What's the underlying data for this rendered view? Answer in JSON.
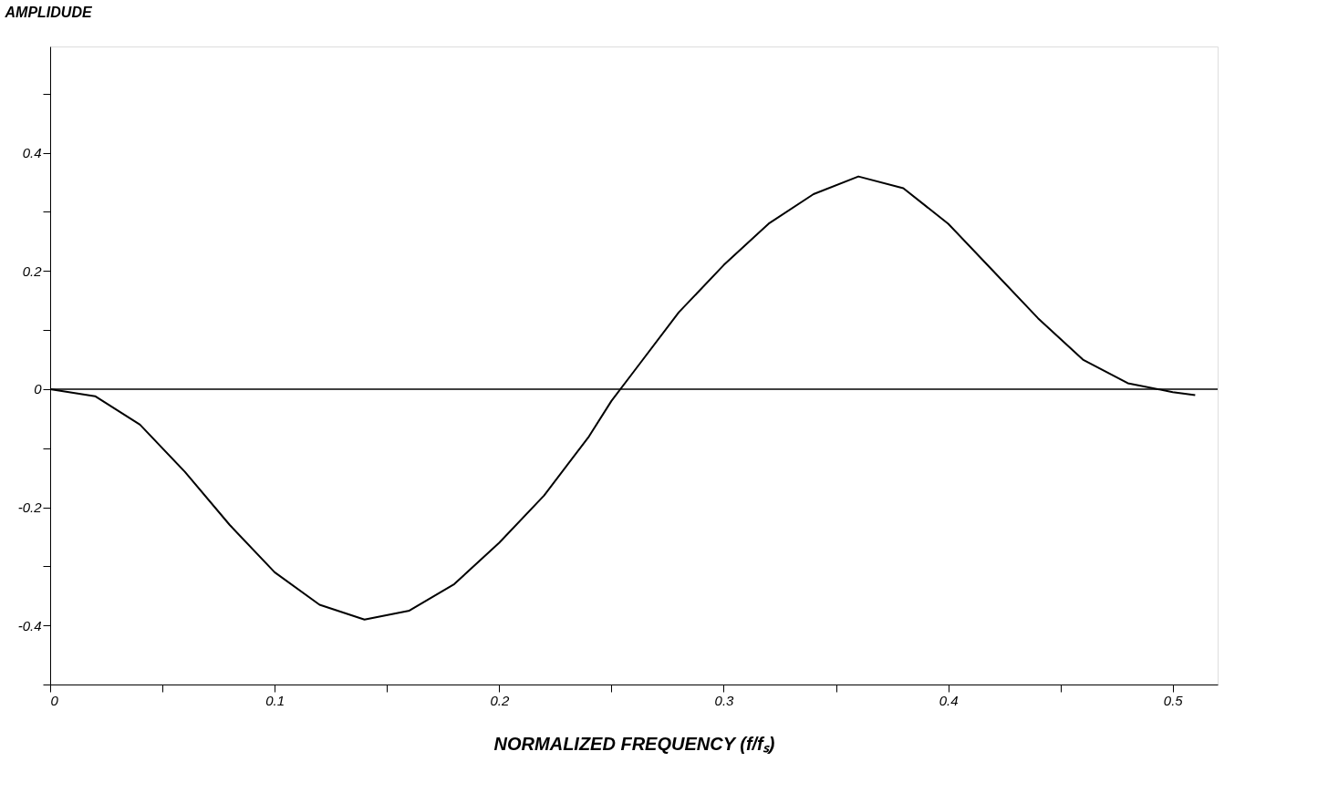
{
  "chart_data": {
    "type": "line",
    "xlabel": "NORMALIZED FREQUENCY (f/fₛ)",
    "ylabel": "AMPLIDUDE",
    "x": [
      0,
      0.02,
      0.04,
      0.06,
      0.08,
      0.1,
      0.12,
      0.14,
      0.16,
      0.18,
      0.2,
      0.22,
      0.24,
      0.25,
      0.26,
      0.28,
      0.3,
      0.32,
      0.34,
      0.36,
      0.38,
      0.4,
      0.42,
      0.44,
      0.46,
      0.48,
      0.5,
      0.51
    ],
    "series": [
      {
        "color": "#000000",
        "values": [
          0,
          -0.012,
          -0.06,
          -0.14,
          -0.23,
          -0.31,
          -0.365,
          -0.39,
          -0.375,
          -0.33,
          -0.26,
          -0.18,
          -0.08,
          -0.02,
          0.03,
          0.13,
          0.21,
          0.28,
          0.33,
          0.36,
          0.34,
          0.28,
          0.2,
          0.12,
          0.05,
          0.01,
          -0.005,
          -0.01
        ]
      }
    ],
    "xlim": [
      0,
      0.52
    ],
    "ylim": [
      -0.5,
      0.58
    ],
    "xticks": [
      0,
      {
        "value": 0.05,
        "label": null
      },
      0.1,
      {
        "value": 0.15,
        "label": null
      },
      0.2,
      {
        "value": 0.25,
        "label": null
      },
      0.3,
      {
        "value": 0.35,
        "label": null
      },
      0.4,
      {
        "value": 0.45,
        "label": null
      },
      0.5
    ],
    "yticks": [
      {
        "value": -0.5,
        "label": null
      },
      -0.4,
      {
        "value": -0.3,
        "label": null
      },
      -0.2,
      {
        "value": -0.1,
        "label": null
      },
      0,
      {
        "value": 0.1,
        "label": null
      },
      0.2,
      {
        "value": 0.3,
        "label": null
      },
      0.4,
      {
        "value": 0.5,
        "label": null
      }
    ],
    "ref_lines": [
      {
        "axis": "y",
        "value": 0,
        "color": "#000000"
      }
    ],
    "grid": false,
    "marker": "none",
    "line_style": "solid"
  }
}
